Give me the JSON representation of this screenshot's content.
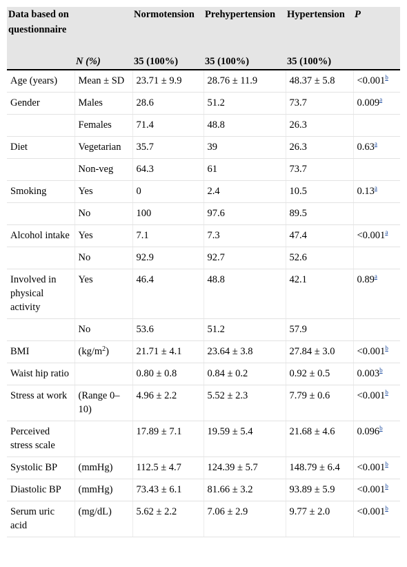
{
  "header": {
    "col1": "Data based on questionnaire",
    "col2_label": "N (%)",
    "groups": [
      "Normotension",
      "Prehypertension",
      "Hypertension"
    ],
    "p_label": "P",
    "counts": [
      "35 (100%)",
      "35 (100%)",
      "35 (100%)"
    ]
  },
  "rows": [
    {
      "label": "Age (years)",
      "sub": "Mean ± SD",
      "v": [
        "23.71 ± 9.9",
        "28.76 ± 11.9",
        "48.37 ± 5.8"
      ],
      "p": "<0.001",
      "sup": "b"
    },
    {
      "label": "Gender",
      "sub": "Males",
      "v": [
        "28.6",
        "51.2",
        "73.7"
      ],
      "p": "0.009",
      "sup": "a"
    },
    {
      "label": "",
      "sub": "Females",
      "v": [
        "71.4",
        "48.8",
        "26.3"
      ],
      "p": "",
      "sup": ""
    },
    {
      "label": "Diet",
      "sub": "Vegetarian",
      "v": [
        "35.7",
        "39",
        "26.3"
      ],
      "p": "0.63",
      "sup": "a"
    },
    {
      "label": "",
      "sub": "Non-veg",
      "v": [
        "64.3",
        "61",
        "73.7"
      ],
      "p": "",
      "sup": ""
    },
    {
      "label": "Smoking",
      "sub": "Yes",
      "v": [
        "0",
        "2.4",
        "10.5"
      ],
      "p": "0.13",
      "sup": "a"
    },
    {
      "label": "",
      "sub": "No",
      "v": [
        "100",
        "97.6",
        "89.5"
      ],
      "p": "",
      "sup": ""
    },
    {
      "label": "Alcohol intake",
      "sub": "Yes",
      "v": [
        "7.1",
        "7.3",
        "47.4"
      ],
      "p": "<0.001",
      "sup": "a"
    },
    {
      "label": "",
      "sub": "No",
      "v": [
        "92.9",
        "92.7",
        "52.6"
      ],
      "p": "",
      "sup": ""
    },
    {
      "label": "Involved in physical activity",
      "sub": "Yes",
      "v": [
        "46.4",
        "48.8",
        "42.1"
      ],
      "p": "0.89",
      "sup": "a"
    },
    {
      "label": "",
      "sub": "No",
      "v": [
        "53.6",
        "51.2",
        "57.9"
      ],
      "p": "",
      "sup": ""
    },
    {
      "label": "BMI",
      "sub": "(kg/m2)",
      "v": [
        "21.71 ± 4.1",
        "23.64 ± 3.8",
        "27.84 ± 3.0"
      ],
      "p": "<0.001",
      "sup": "b"
    },
    {
      "label": "Waist hip ratio",
      "sub": "",
      "v": [
        "0.80 ± 0.8",
        "0.84 ± 0.2",
        "0.92 ± 0.5"
      ],
      "p": "0.003",
      "sup": "b"
    },
    {
      "label": "Stress at work",
      "sub": "(Range 0–10)",
      "v": [
        "4.96 ± 2.2",
        "5.52 ± 2.3",
        "7.79 ± 0.6"
      ],
      "p": "<0.001",
      "sup": "b"
    },
    {
      "label": "Perceived stress scale",
      "sub": "",
      "v": [
        "17.89 ± 7.1",
        "19.59 ± 5.4",
        "21.68 ± 4.6"
      ],
      "p": "0.096",
      "sup": "b"
    },
    {
      "label": "Systolic BP",
      "sub": "(mmHg)",
      "v": [
        "112.5 ± 4.7",
        "124.39 ± 5.7",
        "148.79 ± 6.4"
      ],
      "p": "<0.001",
      "sup": "b"
    },
    {
      "label": "Diastolic BP",
      "sub": "(mmHg)",
      "v": [
        "73.43 ± 6.1",
        "81.66 ± 3.2",
        "93.89 ± 5.9"
      ],
      "p": "<0.001",
      "sup": "b"
    },
    {
      "label": "Serum uric acid",
      "sub": "(mg/dL)",
      "v": [
        "5.62 ± 2.2",
        "7.06 ± 2.9",
        "9.77 ± 2.0"
      ],
      "p": "<0.001",
      "sup": "b"
    }
  ]
}
